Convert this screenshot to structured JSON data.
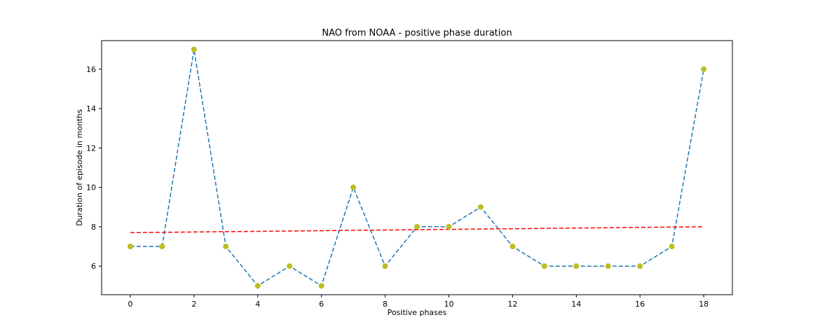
{
  "chart_data": {
    "type": "line",
    "title": "NAO from NOAA - positive phase duration",
    "xlabel": "Positive phases",
    "ylabel": "Duration of episode in months",
    "x": [
      0,
      1,
      2,
      3,
      4,
      5,
      6,
      7,
      8,
      9,
      10,
      11,
      12,
      13,
      14,
      15,
      16,
      17,
      18
    ],
    "xlim": [
      -0.9,
      18.9
    ],
    "ylim": [
      4.55,
      17.45
    ],
    "xticks": [
      0,
      2,
      4,
      6,
      8,
      10,
      12,
      14,
      16,
      18
    ],
    "yticks": [
      6,
      8,
      10,
      12,
      14,
      16
    ],
    "grid": false,
    "series": [
      {
        "values": [
          7,
          7,
          17,
          7,
          5,
          6,
          5,
          10,
          6,
          8,
          8,
          9,
          7,
          6,
          6,
          6,
          6,
          7,
          16
        ],
        "style": "dashed line with circle markers",
        "line_color": "#1f77b4",
        "marker_color": "#bcbd22"
      }
    ],
    "trend_line": {
      "start": [
        0,
        7.7
      ],
      "end": [
        18,
        8.0
      ],
      "style": "dashed",
      "color": "#ff0000"
    }
  }
}
